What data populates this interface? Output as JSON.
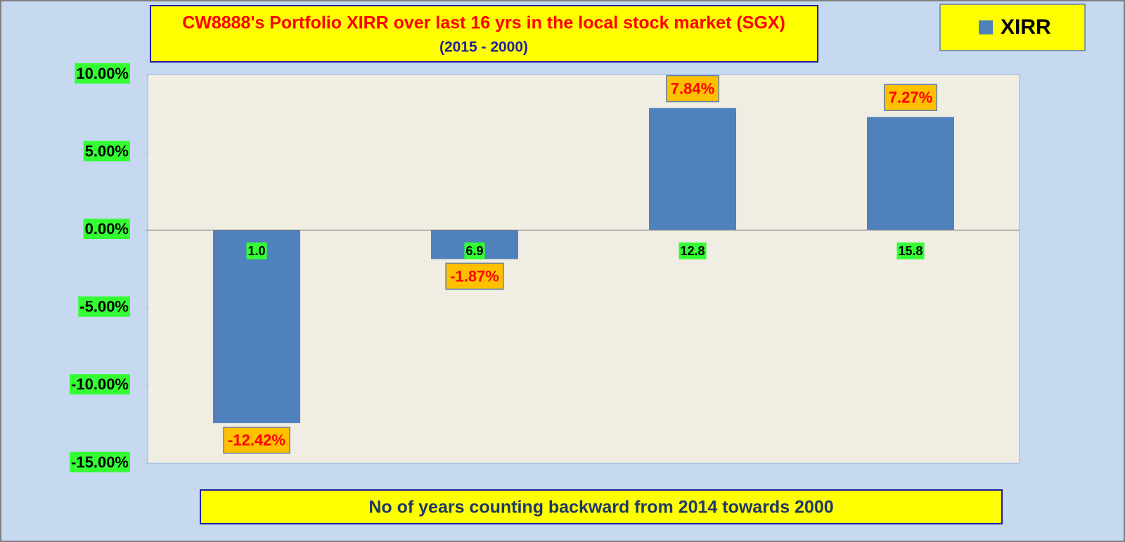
{
  "chart_data": {
    "type": "bar",
    "title": "CW8888's Portfolio XIRR over last 16 yrs in the local stock market (SGX)",
    "subtitle": "(2015 - 2000)",
    "x_label": "No of years counting backward from 2014 towards 2000",
    "categories": [
      "1.0",
      "6.9",
      "12.8",
      "15.8"
    ],
    "series": [
      {
        "name": "XIRR",
        "color": "#4f81bd",
        "values": [
          -12.42,
          -1.87,
          7.84,
          7.27
        ],
        "value_labels": [
          "-12.42%",
          "-1.87%",
          "7.84%",
          "7.27%"
        ]
      }
    ],
    "ylim": [
      -15,
      10
    ],
    "yticks": [
      {
        "value": -15,
        "label": "-15.00%"
      },
      {
        "value": -10,
        "label": "-10.00%"
      },
      {
        "value": -5,
        "label": "-5.00%"
      },
      {
        "value": 0,
        "label": "0.00%"
      },
      {
        "value": 5,
        "label": "5.00%"
      },
      {
        "value": 10,
        "label": "10.00%"
      }
    ],
    "legend": "top-right"
  }
}
